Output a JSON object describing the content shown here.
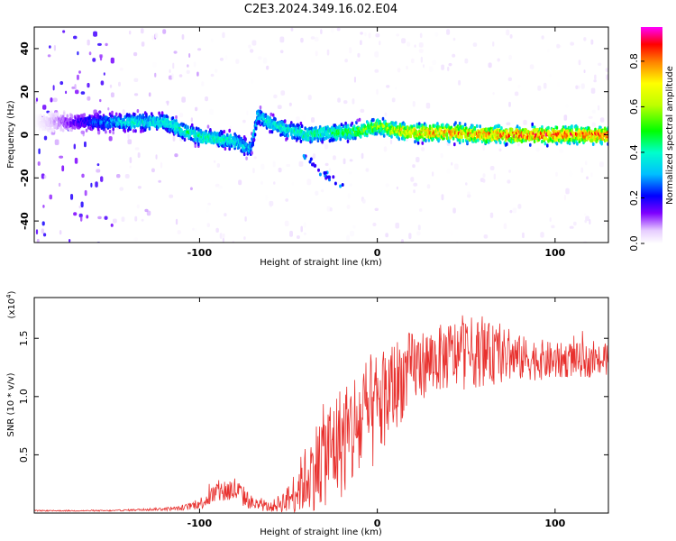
{
  "title": "C2E3.2024.349.16.02.E04",
  "chart_data": [
    {
      "type": "heatmap",
      "xlabel": "Height of straight line (km)",
      "ylabel": "Frequency (Hz)",
      "xlim": [
        -193,
        130
      ],
      "ylim": [
        -50,
        50
      ],
      "xticks": [
        -100,
        0,
        100
      ],
      "yticks": [
        -40,
        -20,
        0,
        20,
        40
      ],
      "colorbar": {
        "label": "Normalized spectral amplitude",
        "range": [
          0,
          0.95
        ],
        "ticks": [
          0.0,
          0.2,
          0.4,
          0.6,
          0.8
        ],
        "tick_labels": [
          "0.0",
          "0.2",
          "0.4",
          "0.6",
          "0.8"
        ]
      },
      "ridge": [
        {
          "x": -193,
          "f": 6,
          "a": 0.0
        },
        {
          "x": -160,
          "f": 6,
          "a": 0.25
        },
        {
          "x": -140,
          "f": 6,
          "a": 0.4
        },
        {
          "x": -120,
          "f": 6,
          "a": 0.4
        },
        {
          "x": -110,
          "f": 2,
          "a": 0.45
        },
        {
          "x": -100,
          "f": -1,
          "a": 0.45
        },
        {
          "x": -90,
          "f": -2,
          "a": 0.42
        },
        {
          "x": -80,
          "f": -3,
          "a": 0.4
        },
        {
          "x": -72,
          "f": -7,
          "a": 0.35
        },
        {
          "x": -68,
          "f": 9,
          "a": 0.35
        },
        {
          "x": -60,
          "f": 5,
          "a": 0.4
        },
        {
          "x": -50,
          "f": 2,
          "a": 0.42
        },
        {
          "x": -40,
          "f": 0,
          "a": 0.45
        },
        {
          "x": -30,
          "f": 1,
          "a": 0.45
        },
        {
          "x": -20,
          "f": 1,
          "a": 0.5
        },
        {
          "x": -10,
          "f": 2,
          "a": 0.55
        },
        {
          "x": 0,
          "f": 4,
          "a": 0.6
        },
        {
          "x": 10,
          "f": 2,
          "a": 0.7
        },
        {
          "x": 20,
          "f": 1,
          "a": 0.75
        },
        {
          "x": 40,
          "f": 1,
          "a": 0.8
        },
        {
          "x": 60,
          "f": 0,
          "a": 0.8
        },
        {
          "x": 80,
          "f": 0,
          "a": 0.85
        },
        {
          "x": 100,
          "f": 0,
          "a": 0.85
        },
        {
          "x": 130,
          "f": 0,
          "a": 0.85
        }
      ]
    },
    {
      "type": "line",
      "xlabel": "Height of straight line (km)",
      "ylabel": "SNR (10 * v/v)",
      "y_multiplier": "(x10",
      "y_multiplier_exp": "4",
      "y_multiplier_close": ")",
      "xlim": [
        -193,
        130
      ],
      "ylim": [
        0,
        1.85
      ],
      "xticks": [
        -100,
        0,
        100
      ],
      "yticks": [
        0.5,
        1.0,
        1.5
      ],
      "ytick_labels": [
        "0.5",
        "1.0",
        "1.5"
      ],
      "color": "#e8312e",
      "series": [
        {
          "x": [
            -193,
            -170,
            -150,
            -130,
            -110,
            -100,
            -90,
            -80,
            -70,
            -60,
            -50,
            -40,
            -30,
            -20,
            -10,
            0,
            10,
            20,
            30,
            40,
            50,
            60,
            70,
            80,
            90,
            100,
            110,
            120,
            130
          ],
          "values": [
            0.02,
            0.02,
            0.02,
            0.03,
            0.04,
            0.08,
            0.18,
            0.2,
            0.08,
            0.05,
            0.12,
            0.3,
            0.5,
            0.62,
            0.75,
            0.9,
            1.1,
            1.25,
            1.3,
            1.35,
            1.38,
            1.37,
            1.35,
            1.33,
            1.32,
            1.3,
            1.32,
            1.3,
            1.32
          ],
          "spread": [
            0.005,
            0.005,
            0.005,
            0.01,
            0.02,
            0.05,
            0.1,
            0.12,
            0.06,
            0.04,
            0.12,
            0.3,
            0.45,
            0.5,
            0.55,
            0.5,
            0.4,
            0.32,
            0.28,
            0.3,
            0.32,
            0.28,
            0.24,
            0.2,
            0.18,
            0.16,
            0.15,
            0.14,
            0.14
          ]
        }
      ]
    }
  ]
}
